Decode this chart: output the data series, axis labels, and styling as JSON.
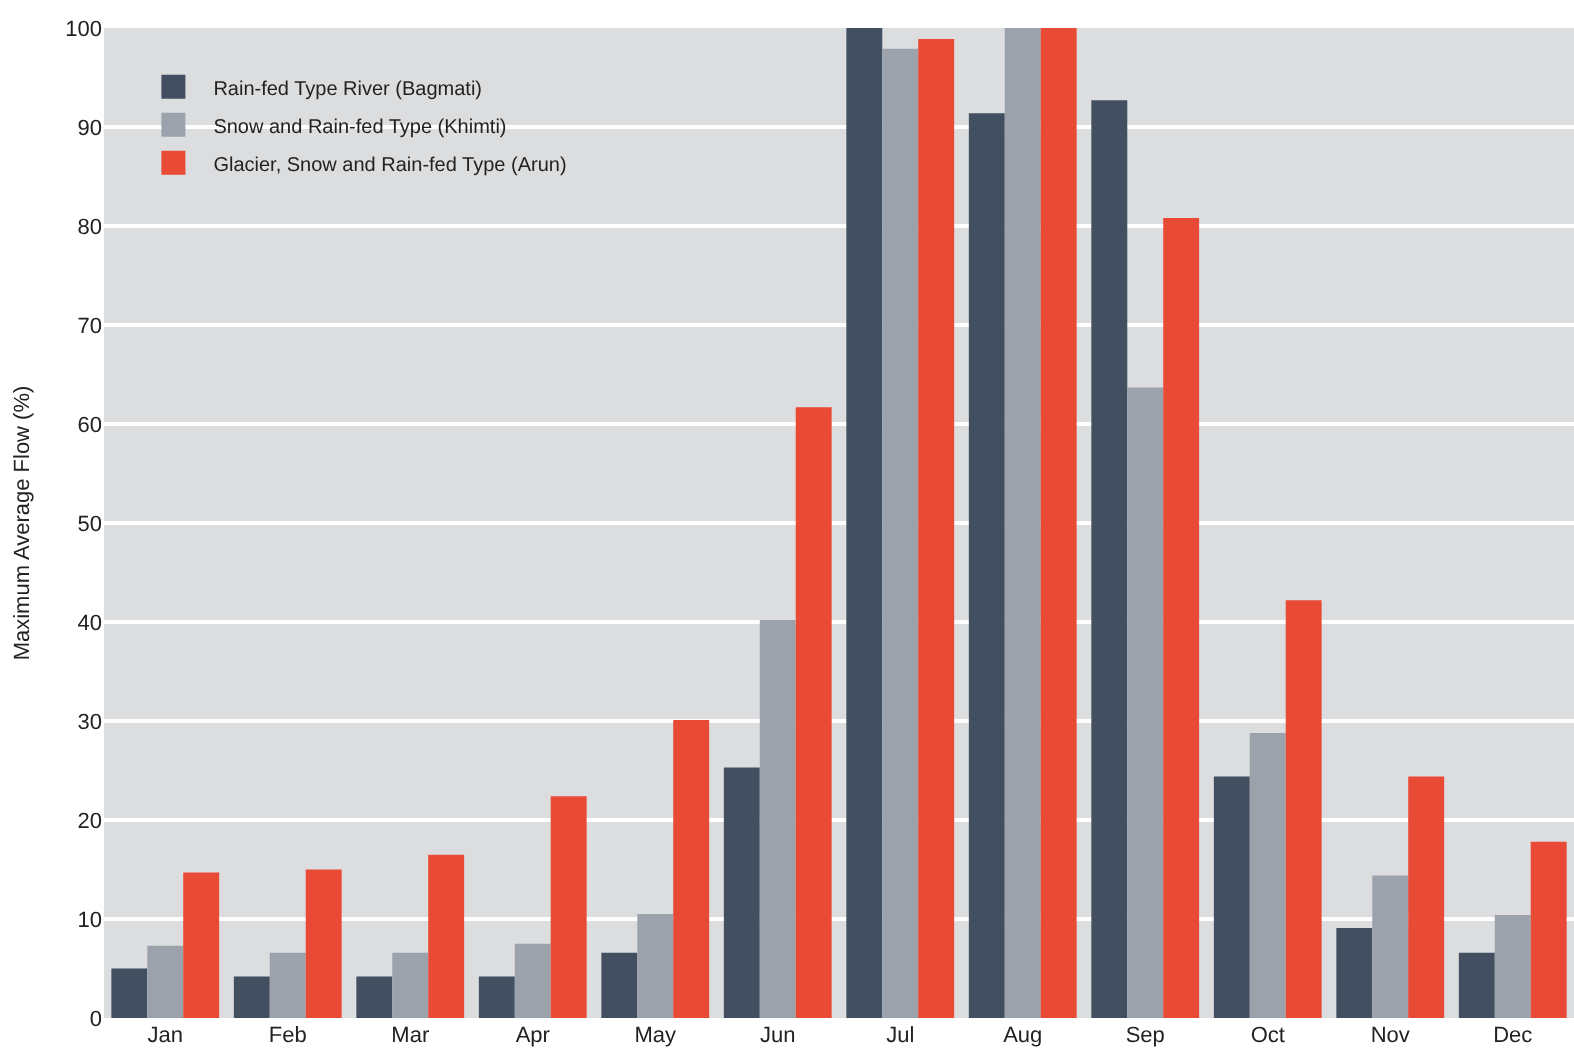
{
  "chart_data": {
    "type": "bar",
    "ylabel": "Maximum Average Flow (%)",
    "categories": [
      "Jan",
      "Feb",
      "Mar",
      "Apr",
      "May",
      "Jun",
      "Jul",
      "Aug",
      "Sep",
      "Oct",
      "Nov",
      "Dec"
    ],
    "series": [
      {
        "name": "Rain-fed Type River (Bagmati)",
        "color": "#414f60",
        "values": [
          5,
          4.2,
          4.2,
          4.2,
          6.6,
          25.3,
          100,
          91.4,
          92.7,
          24.4,
          9.1,
          6.6
        ]
      },
      {
        "name": "Snow and Rain-fed Type (Khimti)",
        "color": "#9ca2ab",
        "values": [
          7.3,
          6.6,
          6.6,
          7.5,
          10.5,
          40.2,
          97.9,
          100,
          63.7,
          28.8,
          14.4,
          10.4
        ]
      },
      {
        "name": "Glacier, Snow and Rain-fed Type (Arun)",
        "color": "#e84a35",
        "values": [
          14.7,
          15,
          16.5,
          22.4,
          30.1,
          61.7,
          98.9,
          100,
          80.8,
          42.2,
          24.4,
          17.8
        ]
      }
    ],
    "ylim": [
      0,
      100
    ],
    "yticks": [
      0,
      10,
      20,
      30,
      40,
      50,
      60,
      70,
      80,
      90,
      100
    ],
    "grid": "y",
    "legend": "top left"
  }
}
